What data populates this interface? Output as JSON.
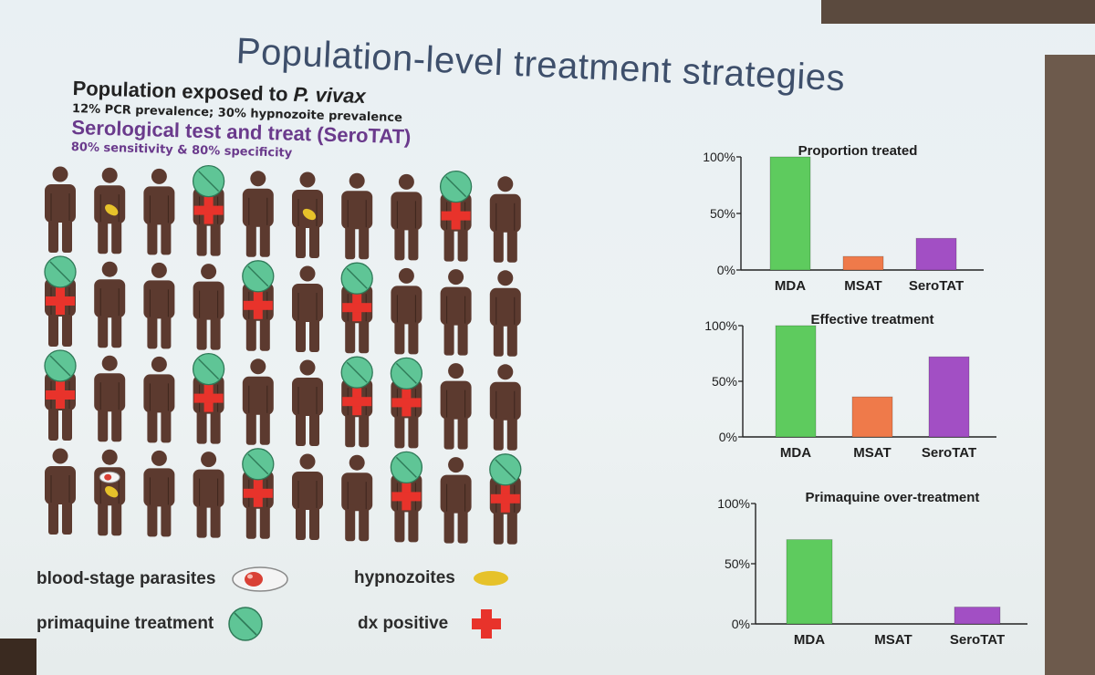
{
  "slide": {
    "title": "Population-level treatment strategies",
    "population_heading_prefix": "Population exposed to ",
    "population_heading_species": "P. vivax",
    "population_subtext": "12% PCR prevalence; 30% hypnozoite prevalence",
    "strategy_heading": "Serological test and treat (SeroTAT)",
    "strategy_subtext": "80% sensitivity & 80% specificity"
  },
  "people_grid": {
    "rows": 4,
    "cols": 10,
    "person_color": "#5c3a2f",
    "treated": [
      [
        0,
        3
      ],
      [
        0,
        8
      ],
      [
        1,
        0
      ],
      [
        1,
        4
      ],
      [
        1,
        6
      ],
      [
        2,
        0
      ],
      [
        2,
        3
      ],
      [
        2,
        6
      ],
      [
        2,
        7
      ],
      [
        3,
        4
      ],
      [
        3,
        7
      ],
      [
        3,
        9
      ]
    ],
    "dx_positive": [
      [
        0,
        3
      ],
      [
        0,
        8
      ],
      [
        1,
        0
      ],
      [
        1,
        4
      ],
      [
        1,
        6
      ],
      [
        2,
        0
      ],
      [
        2,
        3
      ],
      [
        2,
        6
      ],
      [
        2,
        7
      ],
      [
        3,
        4
      ],
      [
        3,
        7
      ],
      [
        3,
        9
      ]
    ],
    "hypnozoites": [
      [
        0,
        1
      ],
      [
        0,
        5
      ],
      [
        3,
        1
      ]
    ],
    "blood_stage": [
      [
        3,
        1
      ]
    ]
  },
  "legend": {
    "blood_stage_label": "blood-stage parasites",
    "hypnozoites_label": "hypnozoites",
    "primaquine_label": "primaquine treatment",
    "dx_positive_label": "dx positive",
    "colors": {
      "primaquine": "#5fc596",
      "dx_positive": "#e8332b",
      "hypnozoite": "#e6c22a",
      "blood_stage": "#d94035"
    }
  },
  "chart_data": [
    {
      "type": "bar",
      "title": "Proportion treated",
      "categories": [
        "MDA",
        "MSAT",
        "SeroTAT"
      ],
      "values": [
        100,
        12,
        28
      ],
      "colors": [
        "#5ecb5e",
        "#ef7a4a",
        "#a24fc4"
      ],
      "ylim": [
        0,
        100
      ],
      "yticks": [
        "0%",
        "50%",
        "100%"
      ]
    },
    {
      "type": "bar",
      "title": "Effective treatment",
      "categories": [
        "MDA",
        "MSAT",
        "SeroTAT"
      ],
      "values": [
        100,
        36,
        72
      ],
      "colors": [
        "#5ecb5e",
        "#ef7a4a",
        "#a24fc4"
      ],
      "ylim": [
        0,
        100
      ],
      "yticks": [
        "0%",
        "50%",
        "100%"
      ]
    },
    {
      "type": "bar",
      "title": "Primaquine over-treatment",
      "categories": [
        "MDA",
        "MSAT",
        "SeroTAT"
      ],
      "values": [
        70,
        0,
        14
      ],
      "colors": [
        "#5ecb5e",
        "#ef7a4a",
        "#a24fc4"
      ],
      "ylim": [
        0,
        100
      ],
      "yticks": [
        "0%",
        "50%",
        "100%"
      ]
    }
  ]
}
